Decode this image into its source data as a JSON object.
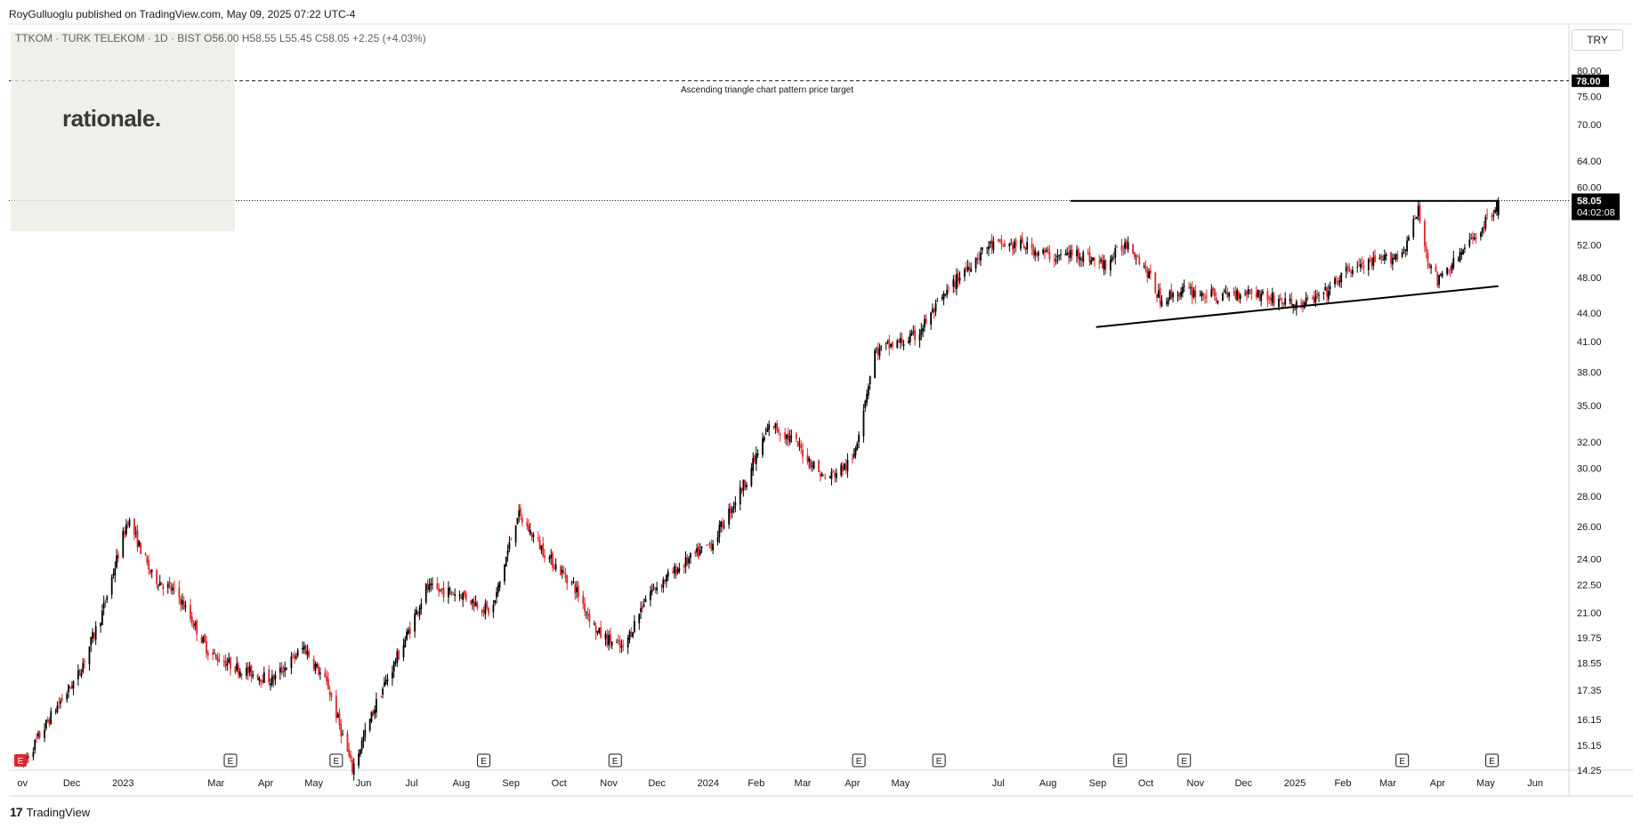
{
  "header": {
    "published_by": "RoyGulluoglu published on TradingView.com, May 09, 2025 07:22 UTC-4"
  },
  "legend": {
    "symbol": "TTKOM · TURK TELEKOM · 1D · BIST",
    "open": "O56.00",
    "high": "H58.55",
    "low": "L55.45",
    "close": "C58.05",
    "change": "+2.25 (+4.03%)"
  },
  "watermark": {
    "text": "rationale."
  },
  "currency": "TRY",
  "annotation": {
    "target_text": "Ascending triangle chart pattern price target"
  },
  "price_badges": {
    "target": "78.00",
    "last_price": "58.05",
    "countdown": "04:02:08"
  },
  "footer": {
    "brand_text": "TradingView"
  },
  "earnings_marker": "E",
  "colors": {
    "up": "#000000",
    "down": "#e0252a",
    "badge_bg": "#000000",
    "badge_text": "#ffffff"
  },
  "chart_data": {
    "type": "candlestick",
    "scale": "log",
    "ylim": [
      14.25,
      82
    ],
    "y_ticks": [
      "80.00",
      "75.00",
      "70.00",
      "64.00",
      "60.00",
      "52.00",
      "48.00",
      "44.00",
      "41.00",
      "38.00",
      "35.00",
      "32.00",
      "30.00",
      "28.00",
      "26.00",
      "24.00",
      "22.50",
      "21.00",
      "19.75",
      "18.55",
      "17.35",
      "16.15",
      "15.15",
      "14.25"
    ],
    "x_ticks": [
      "ov",
      "Dec",
      "2023",
      "Mar",
      "Apr",
      "May",
      "Jun",
      "Jul",
      "Aug",
      "Sep",
      "Oct",
      "Nov",
      "Dec",
      "2024",
      "Feb",
      "Mar",
      "Apr",
      "May",
      "Jul",
      "Aug",
      "Sep",
      "Oct",
      "Nov",
      "Dec",
      "2025",
      "Feb",
      "Mar",
      "Apr",
      "May",
      "Jun"
    ],
    "price_path": [
      [
        "2022-11-01",
        14.5
      ],
      [
        "2022-11-20",
        16.5
      ],
      [
        "2022-12-05",
        18.0
      ],
      [
        "2022-12-20",
        21.0
      ],
      [
        "2023-01-05",
        26.5
      ],
      [
        "2023-01-20",
        23.0
      ],
      [
        "2023-02-05",
        22.0
      ],
      [
        "2023-02-25",
        19.0
      ],
      [
        "2023-03-15",
        18.3
      ],
      [
        "2023-04-05",
        17.8
      ],
      [
        "2023-04-25",
        19.3
      ],
      [
        "2023-05-10",
        17.5
      ],
      [
        "2023-05-25",
        14.3
      ],
      [
        "2023-06-10",
        17.0
      ],
      [
        "2023-06-25",
        19.3
      ],
      [
        "2023-07-10",
        22.3
      ],
      [
        "2023-08-01",
        22.0
      ],
      [
        "2023-08-20",
        21.0
      ],
      [
        "2023-09-05",
        26.8
      ],
      [
        "2023-09-25",
        24.0
      ],
      [
        "2023-10-10",
        22.5
      ],
      [
        "2023-10-25",
        20.0
      ],
      [
        "2023-11-10",
        19.2
      ],
      [
        "2023-11-25",
        22.0
      ],
      [
        "2023-12-15",
        23.5
      ],
      [
        "2024-01-05",
        25.0
      ],
      [
        "2024-01-25",
        29.0
      ],
      [
        "2024-02-10",
        33.5
      ],
      [
        "2024-02-25",
        32.0
      ],
      [
        "2024-03-15",
        29.2
      ],
      [
        "2024-04-01",
        30.5
      ],
      [
        "2024-04-15",
        40.0
      ],
      [
        "2024-05-10",
        41.5
      ],
      [
        "2024-05-25",
        45.0
      ],
      [
        "2024-06-10",
        49.0
      ],
      [
        "2024-06-25",
        52.0
      ],
      [
        "2024-07-15",
        52.0
      ],
      [
        "2024-08-05",
        50.5
      ],
      [
        "2024-08-20",
        51.0
      ],
      [
        "2024-09-05",
        49.5
      ],
      [
        "2024-09-20",
        52.5
      ],
      [
        "2024-10-01",
        49.0
      ],
      [
        "2024-10-10",
        45.5
      ],
      [
        "2024-10-25",
        46.5
      ],
      [
        "2024-11-15",
        45.8
      ],
      [
        "2024-12-05",
        46.5
      ],
      [
        "2024-12-20",
        45.5
      ],
      [
        "2025-01-05",
        44.8
      ],
      [
        "2025-01-20",
        46.0
      ],
      [
        "2025-02-05",
        49.0
      ],
      [
        "2025-02-25",
        50.0
      ],
      [
        "2025-03-10",
        51.0
      ],
      [
        "2025-03-20",
        56.5
      ],
      [
        "2025-03-25",
        51.0
      ],
      [
        "2025-04-01",
        47.5
      ],
      [
        "2025-04-10",
        49.5
      ],
      [
        "2025-04-20",
        52.0
      ],
      [
        "2025-05-01",
        55.0
      ],
      [
        "2025-05-09",
        58.05
      ]
    ],
    "last_candle": {
      "date": "2025-05-09",
      "open": 56.0,
      "high": 58.55,
      "low": 55.45,
      "close": 58.05
    },
    "resistance_line": {
      "from": [
        "2024-08-15",
        58.0
      ],
      "to": [
        "2025-05-09",
        58.0
      ]
    },
    "support_line": {
      "from": [
        "2024-08-31",
        42.5
      ],
      "to": [
        "2025-05-09",
        47.0
      ]
    },
    "target_line": {
      "price": 78.0
    },
    "earnings_dates": [
      "2023-03-10",
      "2023-05-15",
      "2023-08-15",
      "2023-11-05",
      "2024-04-05",
      "2024-05-25",
      "2024-09-15",
      "2024-10-25",
      "2025-03-10",
      "2025-05-05"
    ]
  }
}
